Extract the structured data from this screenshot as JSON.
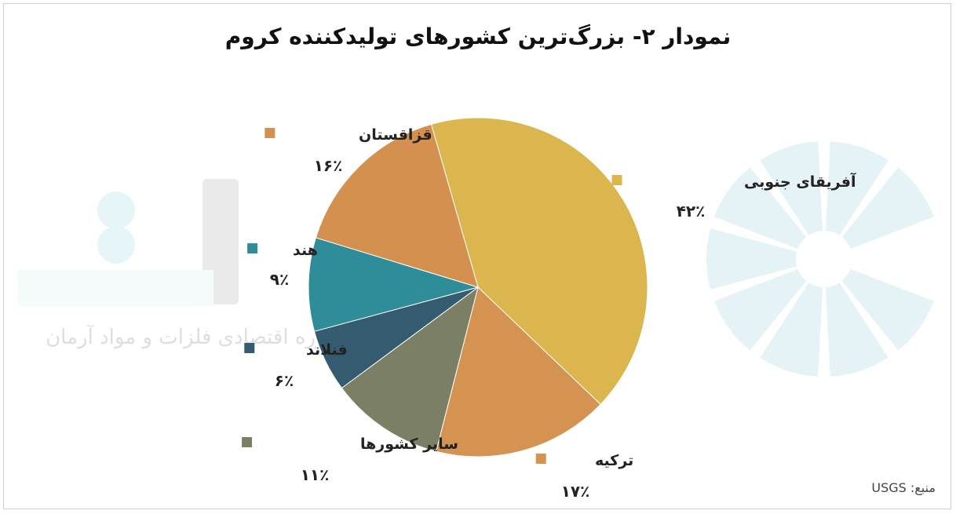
{
  "chart_data": {
    "type": "pie",
    "title": "نمودار ۲- بزرگ‌ترین کشورهای تولیدکننده کروم",
    "slices": [
      {
        "label": "آفریقای جنوبی",
        "value": 42,
        "value_label": "۴۲٪",
        "color": "#dbb54d"
      },
      {
        "label": "ترکیه",
        "value": 17,
        "value_label": "۱۷٪",
        "color": "#d59352"
      },
      {
        "label": "سایر کشورها",
        "value": 11,
        "value_label": "۱۱٪",
        "color": "#7b8065"
      },
      {
        "label": "فنلاند",
        "value": 6,
        "value_label": "۶٪",
        "color": "#345b70"
      },
      {
        "label": "هند",
        "value": 9,
        "value_label": "۹٪",
        "color": "#2e8d98"
      },
      {
        "label": "قزاقستان",
        "value": 16,
        "value_label": "۱۶٪",
        "color": "#d4904f"
      }
    ],
    "start_angle_deg": -16,
    "legend": "labels-around-pie"
  },
  "source": "منبع: USGS",
  "watermark": {
    "text": "شرکت مشاوره اقتصادی فلزات و مواد آرمان",
    "logo_color": "#b9dfe8",
    "wordmark_color": "#e6e6e6"
  }
}
